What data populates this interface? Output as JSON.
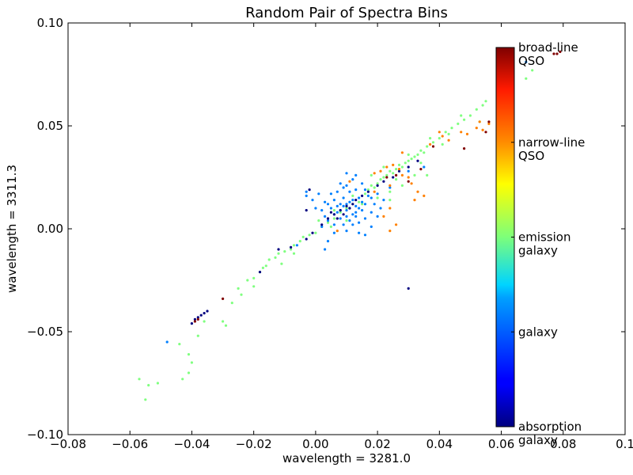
{
  "chart_data": {
    "type": "scatter",
    "title": "Random Pair of Spectra Bins",
    "xlabel": "wavelength = 3281.0",
    "ylabel": "wavelength = 3311.3",
    "xlim": [
      -0.08,
      0.1
    ],
    "ylim": [
      -0.1,
      0.1
    ],
    "xticks": [
      -0.08,
      -0.06,
      -0.04,
      -0.02,
      0.0,
      0.02,
      0.04,
      0.06,
      0.08,
      0.1
    ],
    "xtick_labels": [
      "−0.08",
      "−0.06",
      "−0.04",
      "−0.02",
      "0.00",
      "0.02",
      "0.04",
      "0.06",
      "0.08",
      "0.1"
    ],
    "yticks": [
      -0.1,
      -0.05,
      0.0,
      0.05,
      0.1
    ],
    "ytick_labels": [
      "−0.10",
      "−0.05",
      "0.00",
      "0.05",
      "0.10"
    ],
    "grid": false,
    "colormap": "jet",
    "colorbar": {
      "placement": "inside-right",
      "classes": [
        {
          "value": 0.0,
          "lines": [
            "absorption",
            "galaxy"
          ]
        },
        {
          "value": 0.25,
          "lines": [
            "galaxy"
          ]
        },
        {
          "value": 0.5,
          "lines": [
            "emission",
            "galaxy"
          ]
        },
        {
          "value": 0.75,
          "lines": [
            "narrow-line",
            "QSO"
          ]
        },
        {
          "value": 1.0,
          "lines": [
            "broad-line",
            "QSO"
          ]
        }
      ]
    },
    "series": [
      {
        "class_value": 0.5,
        "points": [
          [
            -0.057,
            -0.073
          ],
          [
            -0.054,
            -0.076
          ],
          [
            -0.055,
            -0.083
          ],
          [
            -0.051,
            -0.075
          ],
          [
            -0.044,
            -0.056
          ],
          [
            -0.043,
            -0.073
          ],
          [
            -0.041,
            -0.061
          ],
          [
            -0.041,
            -0.07
          ],
          [
            -0.04,
            -0.065
          ],
          [
            -0.038,
            -0.052
          ],
          [
            -0.036,
            -0.045
          ],
          [
            -0.03,
            -0.045
          ],
          [
            -0.029,
            -0.047
          ],
          [
            -0.027,
            -0.036
          ],
          [
            -0.025,
            -0.029
          ],
          [
            -0.022,
            -0.025
          ],
          [
            -0.02,
            -0.024
          ],
          [
            -0.018,
            -0.021
          ],
          [
            -0.016,
            -0.018
          ],
          [
            -0.015,
            -0.015
          ],
          [
            -0.013,
            -0.014
          ],
          [
            -0.012,
            -0.012
          ],
          [
            -0.01,
            -0.011
          ],
          [
            -0.008,
            -0.01
          ],
          [
            -0.007,
            -0.008
          ],
          [
            -0.005,
            -0.006
          ],
          [
            -0.004,
            -0.004
          ],
          [
            -0.002,
            -0.003
          ],
          [
            0.0,
            -0.002
          ],
          [
            0.002,
            0.001
          ],
          [
            0.004,
            0.003
          ],
          [
            0.006,
            0.005
          ],
          [
            0.008,
            0.008
          ],
          [
            0.01,
            0.01
          ],
          [
            0.012,
            0.012
          ],
          [
            0.014,
            0.013
          ],
          [
            0.016,
            0.017
          ],
          [
            0.017,
            0.019
          ],
          [
            0.018,
            0.021
          ],
          [
            0.019,
            0.02
          ],
          [
            0.02,
            0.022
          ],
          [
            0.021,
            0.024
          ],
          [
            0.022,
            0.025
          ],
          [
            0.023,
            0.026
          ],
          [
            0.024,
            0.028
          ],
          [
            0.025,
            0.027
          ],
          [
            0.026,
            0.029
          ],
          [
            0.027,
            0.031
          ],
          [
            0.028,
            0.03
          ],
          [
            0.029,
            0.032
          ],
          [
            0.03,
            0.033
          ],
          [
            0.031,
            0.034
          ],
          [
            0.032,
            0.035
          ],
          [
            0.033,
            0.036
          ],
          [
            0.034,
            0.038
          ],
          [
            0.035,
            0.037
          ],
          [
            0.036,
            0.04
          ],
          [
            0.038,
            0.042
          ],
          [
            0.04,
            0.044
          ],
          [
            0.042,
            0.047
          ],
          [
            0.044,
            0.049
          ],
          [
            0.046,
            0.051
          ],
          [
            0.048,
            0.053
          ],
          [
            0.05,
            0.055
          ],
          [
            0.052,
            0.058
          ],
          [
            0.054,
            0.06
          ],
          [
            0.055,
            0.062
          ],
          [
            0.02,
            0.015
          ],
          [
            0.024,
            0.018
          ],
          [
            0.028,
            0.021
          ],
          [
            -0.024,
            -0.032
          ],
          [
            -0.02,
            -0.028
          ],
          [
            -0.017,
            -0.019
          ],
          [
            -0.011,
            -0.017
          ],
          [
            -0.007,
            -0.012
          ],
          [
            0.001,
            0.004
          ],
          [
            0.005,
            0.001
          ],
          [
            0.015,
            0.012
          ],
          [
            0.018,
            0.026
          ],
          [
            0.022,
            0.03
          ],
          [
            0.026,
            0.024
          ],
          [
            0.03,
            0.036
          ],
          [
            0.034,
            0.032
          ],
          [
            0.037,
            0.044
          ],
          [
            0.041,
            0.041
          ],
          [
            0.043,
            0.046
          ],
          [
            0.047,
            0.055
          ],
          [
            0.053,
            0.052
          ],
          [
            0.036,
            0.026
          ],
          [
            0.024,
            0.014
          ],
          [
            0.032,
            0.026
          ],
          [
            0.012,
            0.016
          ],
          [
            0.01,
            0.004
          ],
          [
            0.006,
            0.009
          ],
          [
            0.07,
            0.077
          ],
          [
            0.068,
            0.073
          ]
        ]
      },
      {
        "class_value": 0.25,
        "points": [
          [
            0.004,
            0.012
          ],
          [
            0.005,
            0.01
          ],
          [
            0.006,
            0.014
          ],
          [
            0.007,
            0.008
          ],
          [
            0.008,
            0.012
          ],
          [
            0.009,
            0.015
          ],
          [
            0.01,
            0.009
          ],
          [
            0.011,
            0.013
          ],
          [
            0.012,
            0.007
          ],
          [
            0.013,
            0.011
          ],
          [
            0.014,
            0.015
          ],
          [
            0.015,
            0.009
          ],
          [
            0.016,
            0.012
          ],
          [
            0.017,
            0.016
          ],
          [
            0.008,
            0.005
          ],
          [
            0.009,
            0.002
          ],
          [
            0.01,
            0.006
          ],
          [
            0.011,
            0.004
          ],
          [
            0.012,
            0.002
          ],
          [
            0.013,
            0.006
          ],
          [
            0.007,
            0.018
          ],
          [
            0.009,
            0.02
          ],
          [
            0.011,
            0.018
          ],
          [
            0.013,
            0.019
          ],
          [
            0.005,
            0.017
          ],
          [
            0.003,
            0.013
          ],
          [
            0.002,
            0.009
          ],
          [
            0.003,
            0.006
          ],
          [
            0.004,
            0.004
          ],
          [
            0.006,
            0.002
          ],
          [
            0.014,
            0.003
          ],
          [
            0.016,
            0.005
          ],
          [
            0.018,
            0.008
          ],
          [
            0.019,
            0.012
          ],
          [
            0.018,
            0.015
          ],
          [
            0.016,
            0.019
          ],
          [
            0.01,
            0.021
          ],
          [
            0.008,
            0.022
          ],
          [
            0.012,
            0.024
          ],
          [
            0.0,
            0.01
          ],
          [
            -0.001,
            0.014
          ],
          [
            0.001,
            0.017
          ],
          [
            0.002,
            0.001
          ],
          [
            0.006,
            -0.002
          ],
          [
            0.01,
            -0.001
          ],
          [
            0.014,
            -0.002
          ],
          [
            0.018,
            0.001
          ],
          [
            0.02,
            0.006
          ],
          [
            0.021,
            0.01
          ],
          [
            0.02,
            0.017
          ],
          [
            0.015,
            0.022
          ],
          [
            0.01,
            0.027
          ],
          [
            0.013,
            0.026
          ],
          [
            -0.003,
            0.016
          ],
          [
            -0.003,
            0.018
          ],
          [
            0.007,
            0.011
          ],
          [
            0.011,
            0.01
          ],
          [
            0.012,
            0.014
          ],
          [
            0.009,
            0.011
          ],
          [
            0.008,
            0.009
          ],
          [
            0.013,
            0.008
          ],
          [
            0.015,
            0.013
          ],
          [
            0.01,
            0.012
          ],
          [
            0.006,
            0.007
          ],
          [
            0.014,
            0.01
          ],
          [
            -0.048,
            -0.055
          ],
          [
            0.068,
            0.081
          ],
          [
            0.004,
            -0.006
          ],
          [
            0.016,
            -0.003
          ],
          [
            -0.006,
            -0.008
          ],
          [
            0.003,
            -0.01
          ],
          [
            0.022,
            0.014
          ],
          [
            0.024,
            0.02
          ],
          [
            0.03,
            0.028
          ],
          [
            0.035,
            0.03
          ]
        ]
      },
      {
        "class_value": 0.0,
        "points": [
          [
            -0.04,
            -0.046
          ],
          [
            -0.039,
            -0.044
          ],
          [
            -0.038,
            -0.043
          ],
          [
            -0.037,
            -0.042
          ],
          [
            -0.036,
            -0.041
          ],
          [
            -0.035,
            -0.04
          ],
          [
            -0.018,
            -0.021
          ],
          [
            -0.008,
            -0.009
          ],
          [
            -0.003,
            -0.005
          ],
          [
            -0.001,
            -0.002
          ],
          [
            0.002,
            0.002
          ],
          [
            0.004,
            0.005
          ],
          [
            0.006,
            0.007
          ],
          [
            0.007,
            0.005
          ],
          [
            0.008,
            0.009
          ],
          [
            0.009,
            0.007
          ],
          [
            0.01,
            0.011
          ],
          [
            0.011,
            0.01
          ],
          [
            0.012,
            0.012
          ],
          [
            0.013,
            0.014
          ],
          [
            0.015,
            0.016
          ],
          [
            0.017,
            0.018
          ],
          [
            0.02,
            0.021
          ],
          [
            0.022,
            0.023
          ],
          [
            0.025,
            0.025
          ],
          [
            0.027,
            0.028
          ],
          [
            0.03,
            0.03
          ],
          [
            0.033,
            0.033
          ],
          [
            -0.002,
            0.019
          ],
          [
            -0.003,
            0.009
          ],
          [
            -0.012,
            -0.01
          ],
          [
            0.005,
            0.008
          ],
          [
            0.03,
            -0.029
          ]
        ]
      },
      {
        "class_value": 0.75,
        "points": [
          [
            0.019,
            0.027
          ],
          [
            0.021,
            0.028
          ],
          [
            0.023,
            0.03
          ],
          [
            0.025,
            0.031
          ],
          [
            0.027,
            0.029
          ],
          [
            0.028,
            0.026
          ],
          [
            0.03,
            0.025
          ],
          [
            0.031,
            0.022
          ],
          [
            0.033,
            0.018
          ],
          [
            0.032,
            0.014
          ],
          [
            0.035,
            0.016
          ],
          [
            0.024,
            0.01
          ],
          [
            0.022,
            0.006
          ],
          [
            0.026,
            0.002
          ],
          [
            0.024,
            -0.001
          ],
          [
            0.011,
            0.023
          ],
          [
            0.007,
            -0.001
          ],
          [
            0.037,
            0.041
          ],
          [
            0.04,
            0.047
          ],
          [
            0.041,
            0.045
          ],
          [
            0.043,
            0.043
          ],
          [
            0.047,
            0.047
          ],
          [
            0.049,
            0.046
          ],
          [
            0.052,
            0.049
          ],
          [
            0.053,
            0.052
          ],
          [
            0.054,
            0.048
          ],
          [
            0.056,
            0.051
          ],
          [
            0.028,
            0.037
          ],
          [
            0.024,
            0.021
          ],
          [
            0.019,
            0.018
          ]
        ]
      },
      {
        "class_value": 1.0,
        "points": [
          [
            -0.039,
            -0.045
          ],
          [
            -0.038,
            -0.044
          ],
          [
            -0.03,
            -0.034
          ],
          [
            0.023,
            0.025
          ],
          [
            0.026,
            0.026
          ],
          [
            0.03,
            0.023
          ],
          [
            0.034,
            0.029
          ],
          [
            0.038,
            0.04
          ],
          [
            0.048,
            0.039
          ],
          [
            0.055,
            0.047
          ],
          [
            0.077,
            0.085
          ],
          [
            0.078,
            0.085
          ],
          [
            0.079,
            0.086
          ],
          [
            0.056,
            0.052
          ]
        ]
      }
    ]
  }
}
